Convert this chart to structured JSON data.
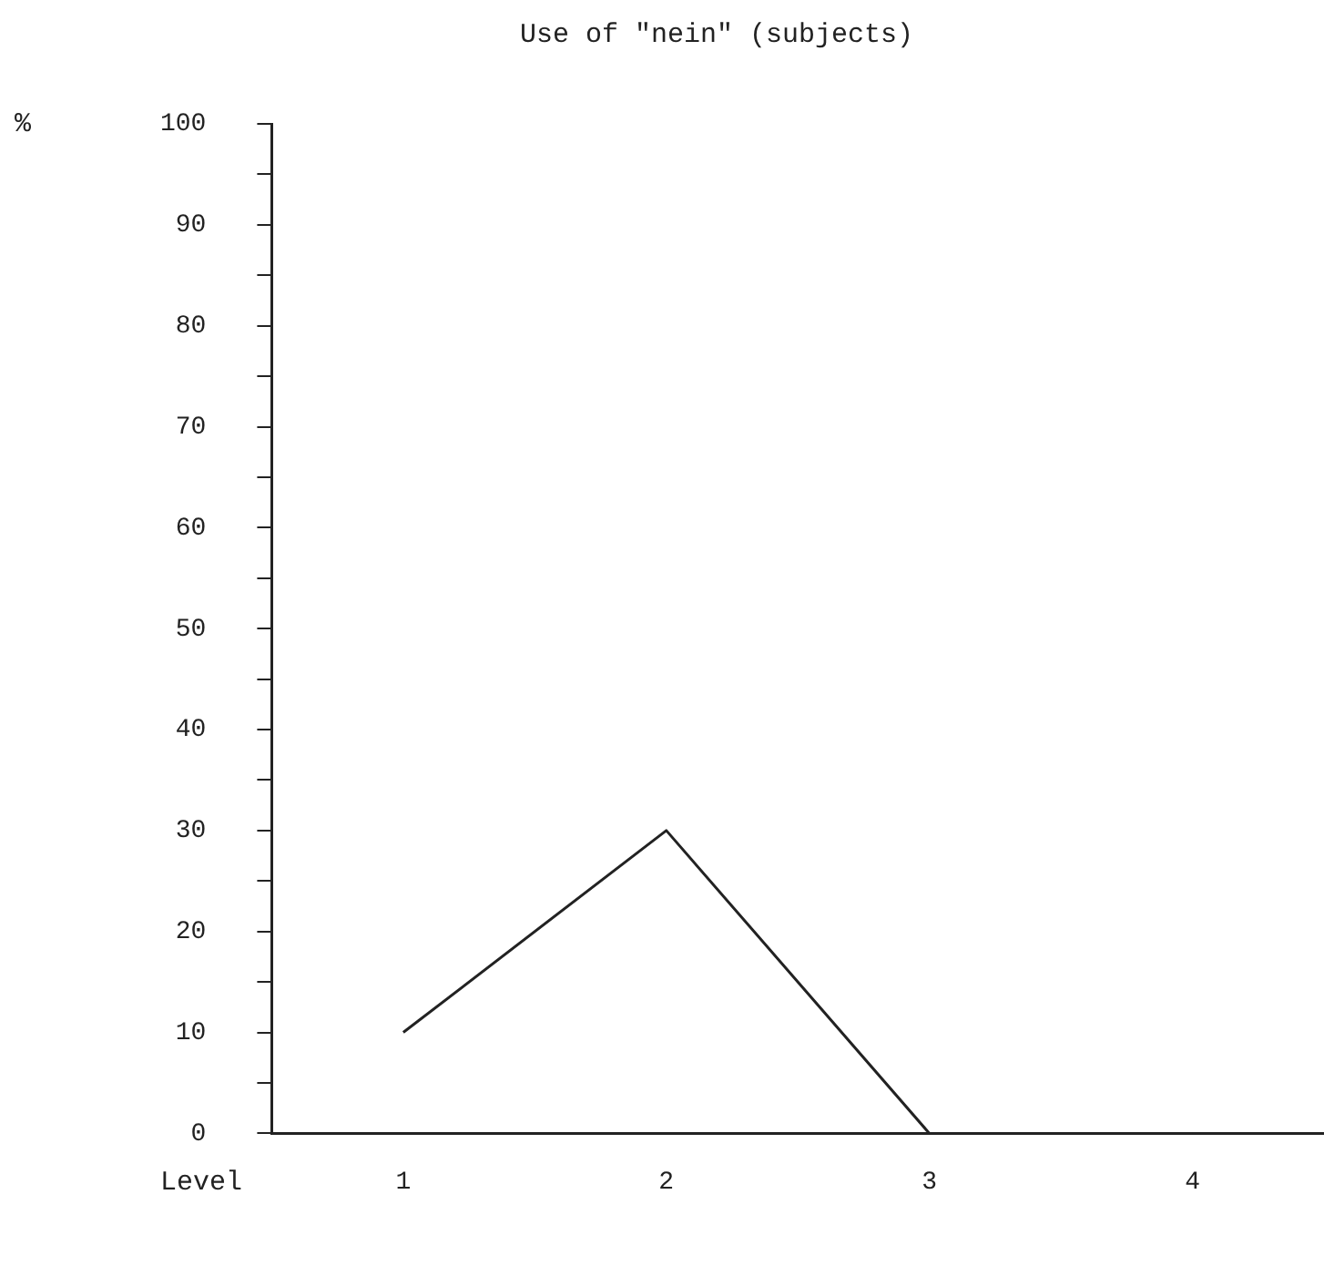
{
  "chart_data": {
    "type": "line",
    "title": "Use of \"nein\" (subjects)",
    "xlabel": "Level",
    "ylabel": "%",
    "categories": [
      "1",
      "2",
      "3",
      "4"
    ],
    "series": [
      {
        "color": "#222222",
        "values": [
          10,
          30,
          0,
          0
        ]
      }
    ],
    "ylim": [
      0,
      100
    ],
    "yticks": [
      0,
      {
        "value": 5,
        "label": null
      },
      10,
      {
        "value": 15,
        "label": null
      },
      20,
      {
        "value": 25,
        "label": null
      },
      30,
      {
        "value": 35,
        "label": null
      },
      40,
      {
        "value": 45,
        "label": null
      },
      50,
      {
        "value": 55,
        "label": null
      },
      60,
      {
        "value": 65,
        "label": null
      },
      70,
      {
        "value": 75,
        "label": null
      },
      80,
      {
        "value": 85,
        "label": null
      },
      90,
      {
        "value": 95,
        "label": null
      },
      100
    ],
    "grid": false,
    "legend": false,
    "marker": "none",
    "line_style": "solid"
  }
}
